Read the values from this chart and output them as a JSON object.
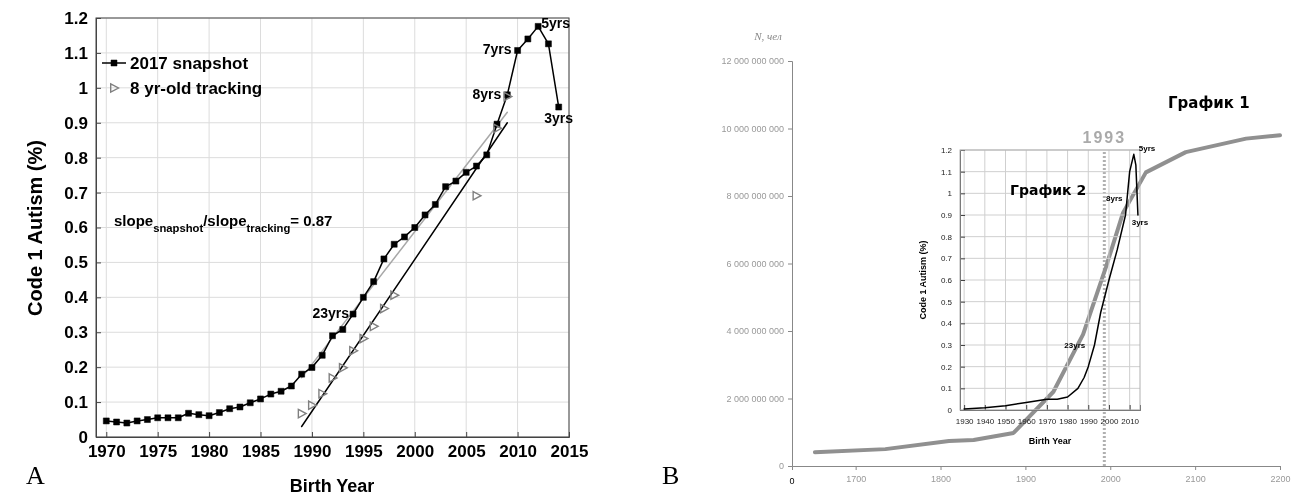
{
  "chart_data": [
    {
      "type": "line",
      "xlabel": "Birth Year",
      "ylabel": "Code 1 Autism (%)",
      "xlim": [
        1969,
        2015
      ],
      "xticks": [
        1970,
        1975,
        1980,
        1985,
        1990,
        1995,
        2000,
        2005,
        2010,
        2015
      ],
      "ylim": [
        0,
        1.2
      ],
      "yticks": [
        0,
        0.1,
        0.2,
        0.3,
        0.4,
        0.5,
        0.6,
        0.7,
        0.8,
        0.9,
        1,
        1.1,
        1.2
      ],
      "grid": true,
      "legend": "top left",
      "series": [
        {
          "name": "2017 snapshot",
          "type": "line",
          "marker": "square",
          "color": "#000000",
          "x": [
            1970,
            1971,
            1972,
            1973,
            1974,
            1975,
            1976,
            1977,
            1978,
            1979,
            1980,
            1981,
            1982,
            1983,
            1984,
            1985,
            1986,
            1987,
            1988,
            1989,
            1990,
            1991,
            1992,
            1993,
            1994,
            1995,
            1996,
            1997,
            1998,
            1999,
            2000,
            2001,
            2002,
            2003,
            2004,
            2005,
            2006,
            2007,
            2008,
            2009,
            2010,
            2011,
            2012,
            2013,
            2014
          ],
          "values": [
            0.046,
            0.043,
            0.04,
            0.046,
            0.05,
            0.055,
            0.055,
            0.055,
            0.068,
            0.064,
            0.061,
            0.07,
            0.081,
            0.086,
            0.098,
            0.109,
            0.123,
            0.131,
            0.146,
            0.18,
            0.199,
            0.234,
            0.29,
            0.308,
            0.352,
            0.4,
            0.445,
            0.51,
            0.552,
            0.573,
            0.6,
            0.636,
            0.666,
            0.717,
            0.733,
            0.758,
            0.776,
            0.808,
            0.896,
            0.98,
            1.107,
            1.14,
            1.176,
            1.126,
            0.945
          ]
        },
        {
          "name": "8 yr-old tracking",
          "type": "scatter",
          "marker": "triangle",
          "color": "#808080",
          "x": [
            1989,
            1990,
            1991,
            1992,
            1993,
            1994,
            1995,
            1996,
            1997,
            1998,
            2006,
            2008,
            2009
          ],
          "values": [
            0.067,
            0.091,
            0.124,
            0.169,
            0.198,
            0.247,
            0.282,
            0.317,
            0.368,
            0.406,
            0.691,
            0.884,
            0.975
          ]
        },
        {
          "type": "line",
          "marker": "none",
          "color": "#a8a8a8",
          "x": [
            1989,
            2009
          ],
          "values": [
            0.17,
            0.93
          ]
        },
        {
          "type": "line",
          "marker": "none",
          "color": "#000000",
          "x": [
            1989,
            2009
          ],
          "values": [
            0.03,
            0.9
          ]
        }
      ],
      "annotations": [
        "A",
        "slope$_{snapshot}$/slope$_{tracking}$= 0.87",
        {
          "text": "23yrs",
          "x": 1994,
          "y": 0.352
        },
        {
          "text": "8yrs",
          "x": 2009,
          "y": 0.98
        },
        {
          "text": "7yrs",
          "x": 2010,
          "y": 1.107
        },
        {
          "text": "5yrs",
          "x": 2012,
          "y": 1.176
        },
        {
          "text": "3yrs",
          "x": 2014,
          "y": 0.945
        }
      ]
    },
    {
      "type": "line",
      "ylabel": "N, чел",
      "xlim": [
        1625,
        2200
      ],
      "xticks": [
        1700,
        1800,
        1900,
        2000,
        2100,
        2200
      ],
      "ylim": [
        0,
        12000000000
      ],
      "yticks": [
        {
          "value": 0,
          "label": "0"
        },
        {
          "value": 2000000000,
          "label": "2 000 000 000"
        },
        {
          "value": 4000000000,
          "label": "4 000 000 000"
        },
        {
          "value": 6000000000,
          "label": "6 000 000 000"
        },
        {
          "value": 8000000000,
          "label": "8 000 000 000"
        },
        {
          "value": 10000000000,
          "label": "10 000 000 000"
        },
        {
          "value": 12000000000,
          "label": "12 000 000 000"
        }
      ],
      "series": [
        {
          "type": "line",
          "marker": "none",
          "color": "#909090",
          "x": [
            1652,
            1735,
            1810,
            1839,
            1886,
            1933,
            1968,
            1995,
            2015,
            2042,
            2089,
            2160,
            2200
          ],
          "values": [
            410000000,
            500000000,
            740000000,
            770000000,
            980000000,
            2200000000,
            3900000000,
            5900000000,
            7500000000,
            8700000000,
            9300000000,
            9700000000,
            9800000000
          ]
        }
      ],
      "ref_lines": [
        {
          "axis": "x",
          "value": 1993,
          "label": "1993",
          "line_style": "dotted",
          "color": "#b0b0b0"
        }
      ],
      "annotations": [
        "B",
        "График 1",
        "0"
      ]
    },
    {
      "type": "line",
      "xlabel": "Birth Year",
      "ylabel": "Code 1 Autism (%)",
      "xlim": [
        1928,
        2015
      ],
      "xticks": [
        1930,
        1940,
        1950,
        1960,
        1970,
        1980,
        1990,
        2000,
        2010
      ],
      "ylim": [
        0,
        1.2
      ],
      "yticks": [
        0,
        0.1,
        0.2,
        0.3,
        0.4,
        0.5,
        0.6,
        0.7,
        0.8,
        0.9,
        1,
        1.1,
        1.2
      ],
      "grid": true,
      "series": [
        {
          "type": "line",
          "marker": "none",
          "color": "#000000",
          "x": [
            1930,
            1940,
            1950,
            1960,
            1970,
            1975,
            1980,
            1985,
            1988,
            1990,
            1993,
            1996,
            2000,
            2004,
            2008,
            2010,
            2012,
            2013,
            2014
          ],
          "values": [
            0.005,
            0.01,
            0.02,
            0.035,
            0.05,
            0.05,
            0.06,
            0.1,
            0.15,
            0.2,
            0.3,
            0.45,
            0.6,
            0.74,
            0.9,
            1.1,
            1.18,
            1.13,
            0.9
          ]
        }
      ],
      "annotations": [
        "График 2",
        {
          "text": "23yrs",
          "x": 1990,
          "y": 0.3
        },
        {
          "text": "8yrs",
          "x": 2008,
          "y": 0.98
        },
        {
          "text": "5yrs",
          "x": 2012,
          "y": 1.18
        },
        {
          "text": "3yrs",
          "x": 2014,
          "y": 0.9
        }
      ]
    }
  ]
}
